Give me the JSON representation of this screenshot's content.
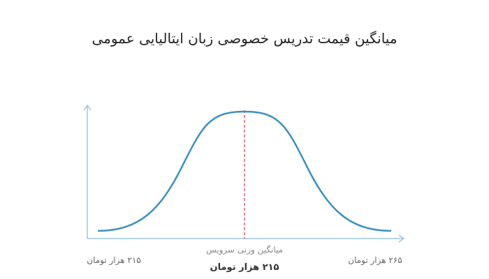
{
  "title": "میانگین قیمت تدریس خصوصی زبان ایتالیایی عمومی",
  "axis": {
    "left_label": "۲۱۵ هزار تومان",
    "right_label": "۲۶۵ هزار تومان"
  },
  "center": {
    "caption": "میانگین وزنی سرویس",
    "value": "۲۱۵ هزار تومان"
  }
}
